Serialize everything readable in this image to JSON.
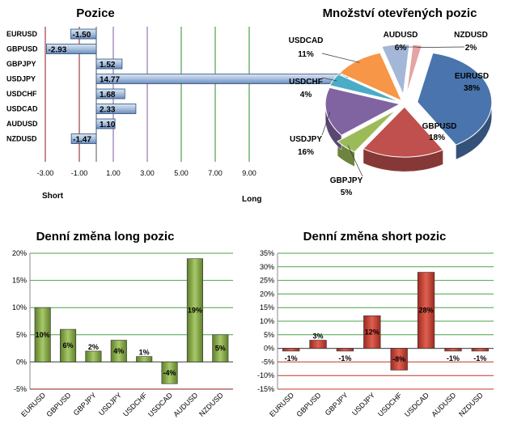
{
  "chart_data": [
    {
      "type": "bar",
      "orientation": "horizontal",
      "title": "Pozice",
      "categories": [
        "EURUSD",
        "GBPUSD",
        "GBPJPY",
        "USDJPY",
        "USDCHF",
        "USDCAD",
        "AUDUSD",
        "NZDUSD"
      ],
      "values": [
        -1.5,
        -2.93,
        1.52,
        14.77,
        1.68,
        2.33,
        1.1,
        -1.47
      ],
      "value_labels": [
        "-1.50",
        "-2.93",
        "1.52",
        "14.77",
        "1.68",
        "2.33",
        "1.10",
        "-1.47"
      ],
      "xlim": [
        -3.0,
        10.0
      ],
      "x_ticks": [
        "-3.00",
        "-1.00",
        "1.00",
        "3.00",
        "5.00",
        "7.00",
        "9.00"
      ],
      "x_tick_values": [
        -3,
        -1,
        1,
        3,
        5,
        7,
        9
      ],
      "left_label": "Short",
      "right_label": "Long",
      "bar_color": "#a8bfdc",
      "bar_edge": "#2c4f7f"
    },
    {
      "type": "pie",
      "title": "Množství otevřených pozic",
      "slices": [
        {
          "label": "EURUSD",
          "value": 38,
          "text": "38%",
          "color": "#4a74ad"
        },
        {
          "label": "GBPUSD",
          "value": 18,
          "text": "18%",
          "color": "#c0504d"
        },
        {
          "label": "GBPJPY",
          "value": 5,
          "text": "5%",
          "color": "#9bbb59"
        },
        {
          "label": "USDJPY",
          "value": 16,
          "text": "16%",
          "color": "#8064a2"
        },
        {
          "label": "USDCHF",
          "value": 4,
          "text": "4%",
          "color": "#4bacc6"
        },
        {
          "label": "USDCAD",
          "value": 11,
          "text": "11%",
          "color": "#f79646"
        },
        {
          "label": "AUDUSD",
          "value": 6,
          "text": "6%",
          "color": "#a5b7d7"
        },
        {
          "label": "NZDUSD",
          "value": 2,
          "text": "2%",
          "color": "#e6a3a3"
        }
      ]
    },
    {
      "type": "bar",
      "title": "Denní změna long pozic",
      "categories": [
        "EURUSD",
        "GBPUSD",
        "GBPJPY",
        "USDJPY",
        "USDCHF",
        "USDCAD",
        "AUDUSD",
        "NZDUSD"
      ],
      "values": [
        10,
        6,
        2,
        4,
        1,
        -4,
        19,
        5
      ],
      "value_labels": [
        "10%",
        "6%",
        "2%",
        "4%",
        "1%",
        "-4%",
        "19%",
        "5%"
      ],
      "ylim": [
        -5,
        20
      ],
      "y_ticks": [
        "-5%",
        "0%",
        "5%",
        "10%",
        "15%",
        "20%"
      ],
      "y_tick_values": [
        -5,
        0,
        5,
        10,
        15,
        20
      ],
      "bar_color": "#7a9a3c",
      "grid_color": "#4aa44a"
    },
    {
      "type": "bar",
      "title": "Denní změna short pozic",
      "categories": [
        "EURUSD",
        "GBPUSD",
        "GBPJPY",
        "USDJPY",
        "USDCHF",
        "USDCAD",
        "AUDUSD",
        "NZDUSD"
      ],
      "values": [
        -1,
        3,
        -1,
        12,
        -8,
        28,
        -1,
        -1
      ],
      "value_labels": [
        "-1%",
        "3%",
        "-1%",
        "12%",
        "-8%",
        "28%",
        "-1%",
        "-1%"
      ],
      "ylim": [
        -15,
        35
      ],
      "y_ticks": [
        "-15%",
        "-10%",
        "-5%",
        "0%",
        "5%",
        "10%",
        "15%",
        "20%",
        "25%",
        "30%",
        "35%"
      ],
      "y_tick_values": [
        -15,
        -10,
        -5,
        0,
        5,
        10,
        15,
        20,
        25,
        30,
        35
      ],
      "bar_color": "#c0392b",
      "pos_grid_color": "#4aa44a",
      "neg_grid_color": "#c0392b"
    }
  ]
}
